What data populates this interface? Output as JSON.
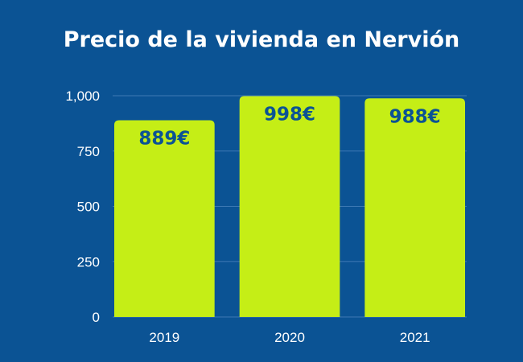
{
  "title": "Precio de la vivienda en Nervión",
  "colors": {
    "background": "#0B5394",
    "bar": "#C5EE16",
    "data_label": "#0B5394",
    "text": "#FFFFFF",
    "gridline": "#3F7AB5"
  },
  "chart_data": {
    "type": "bar",
    "title": "Precio de la vivienda en Nervión",
    "categories": [
      "2019",
      "2020",
      "2021"
    ],
    "values": [
      889,
      998,
      988
    ],
    "data_labels": [
      "889€",
      "998€",
      "988€"
    ],
    "y_ticks": [
      0,
      250,
      500,
      750,
      1000
    ],
    "y_tick_labels": [
      "0",
      "250",
      "500",
      "750",
      "1,000"
    ],
    "ylim": [
      0,
      1000
    ],
    "xlabel": "",
    "ylabel": "",
    "grid": true,
    "legend": "none"
  }
}
